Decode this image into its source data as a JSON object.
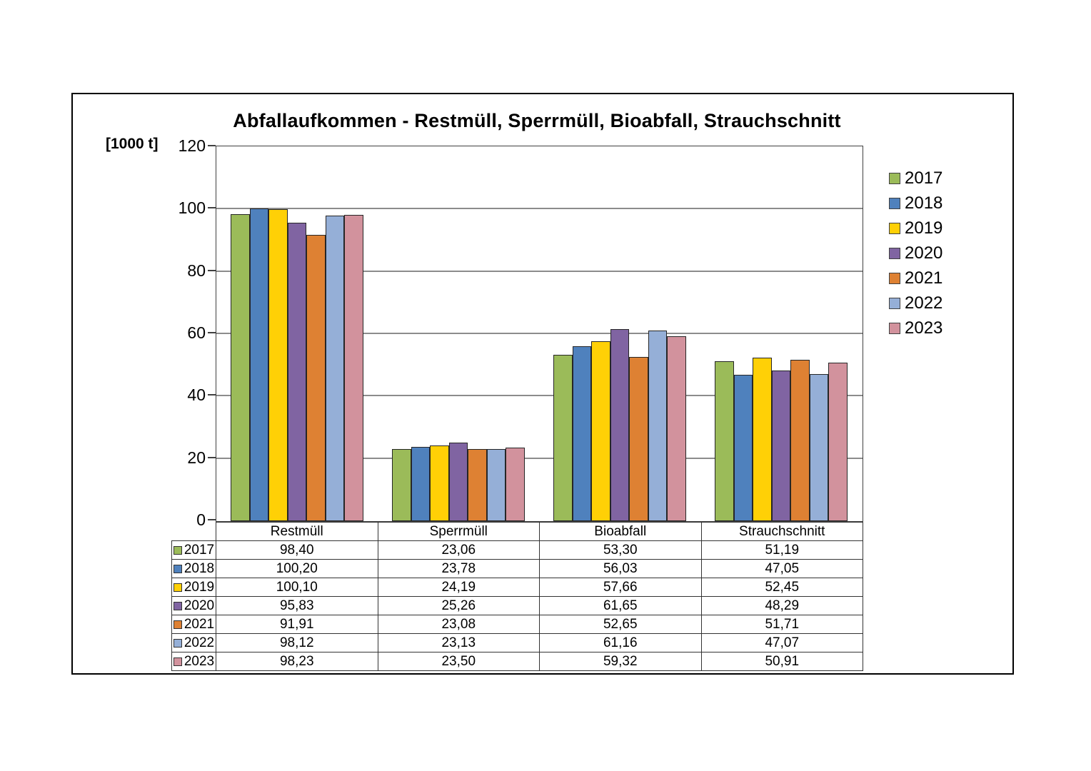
{
  "chart": {
    "title": "Abfallaufkommen - Restmüll, Sperrmüll, Bioabfall, Strauchschnitt",
    "unit_label": "[1000 t]"
  },
  "chart_data": {
    "type": "bar",
    "title": "Abfallaufkommen - Restmüll, Sperrmüll, Bioabfall, Strauchschnitt",
    "xlabel": "",
    "ylabel": "[1000 t]",
    "categories": [
      "Restmüll",
      "Sperrmüll",
      "Bioabfall",
      "Strauchschnitt"
    ],
    "series": [
      {
        "name": "2017",
        "color": "#9BBB59",
        "values": [
          98.4,
          23.06,
          53.3,
          51.19
        ]
      },
      {
        "name": "2018",
        "color": "#4F81BD",
        "values": [
          100.2,
          23.78,
          56.03,
          47.05
        ]
      },
      {
        "name": "2019",
        "color": "#FFD006",
        "values": [
          100.1,
          24.19,
          57.66,
          52.45
        ]
      },
      {
        "name": "2020",
        "color": "#8064A2",
        "values": [
          95.83,
          25.26,
          61.65,
          48.29
        ]
      },
      {
        "name": "2021",
        "color": "#DE8133",
        "values": [
          91.91,
          23.08,
          52.65,
          51.71
        ]
      },
      {
        "name": "2022",
        "color": "#95AFD7",
        "values": [
          98.12,
          23.13,
          61.16,
          47.07
        ]
      },
      {
        "name": "2023",
        "color": "#D2929D",
        "values": [
          98.23,
          23.5,
          59.32,
          50.91
        ]
      }
    ],
    "ylim": [
      0,
      120
    ],
    "yticks": [
      0,
      20,
      40,
      60,
      80,
      100,
      120
    ],
    "grid": true,
    "legend_position": "right",
    "legend_entries": [
      "2017",
      "2018",
      "2019",
      "2020",
      "2021",
      "2022",
      "2023"
    ]
  },
  "table": {
    "header": [
      "Restmüll",
      "Sperrmüll",
      "Bioabfall",
      "Strauchschnitt"
    ],
    "rows": [
      {
        "year": "2017",
        "color": "#9BBB59",
        "values": [
          "98,40",
          "23,06",
          "53,30",
          "51,19"
        ]
      },
      {
        "year": "2018",
        "color": "#4F81BD",
        "values": [
          "100,20",
          "23,78",
          "56,03",
          "47,05"
        ]
      },
      {
        "year": "2019",
        "color": "#FFD006",
        "values": [
          "100,10",
          "24,19",
          "57,66",
          "52,45"
        ]
      },
      {
        "year": "2020",
        "color": "#8064A2",
        "values": [
          "95,83",
          "25,26",
          "61,65",
          "48,29"
        ]
      },
      {
        "year": "2021",
        "color": "#DE8133",
        "values": [
          "91,91",
          "23,08",
          "52,65",
          "51,71"
        ]
      },
      {
        "year": "2022",
        "color": "#95AFD7",
        "values": [
          "98,12",
          "23,13",
          "61,16",
          "47,07"
        ]
      },
      {
        "year": "2023",
        "color": "#D2929D",
        "values": [
          "98,23",
          "23,50",
          "59,32",
          "50,91"
        ]
      }
    ]
  },
  "colors": {
    "frame_border": "#000000",
    "axis": "#404040",
    "gridline": "#8C8C8C",
    "bar_border": "#262626",
    "table_border": "#333333",
    "background": "#FFFFFF"
  }
}
